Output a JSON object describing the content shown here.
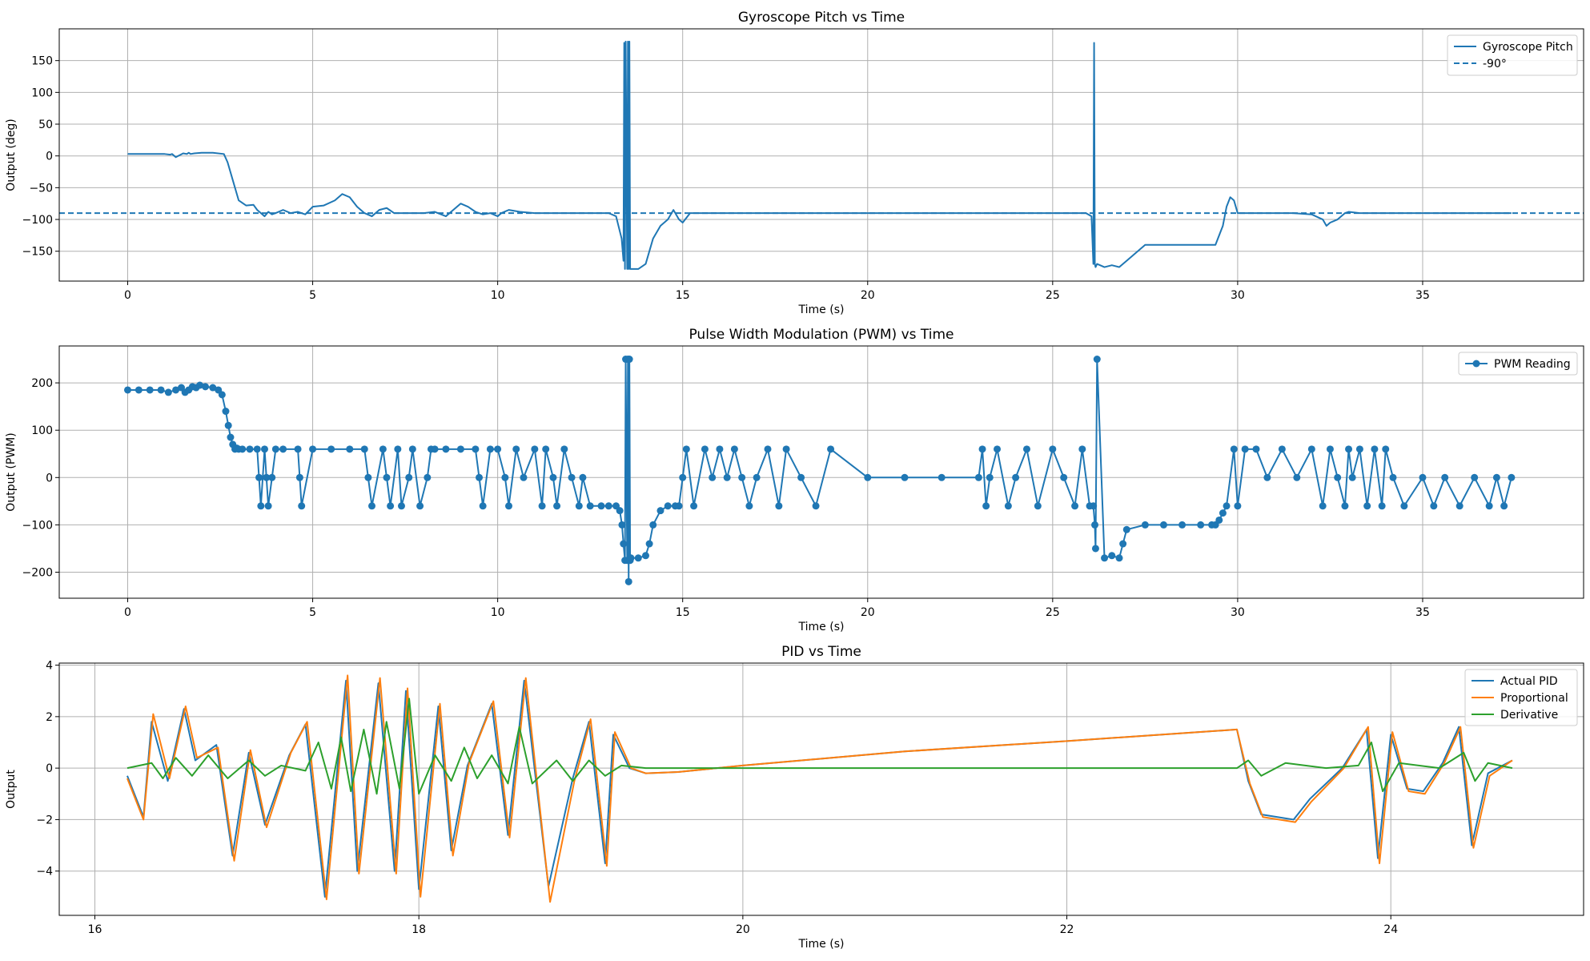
{
  "colors": {
    "blue": "#1f77b4",
    "orange": "#ff7f0e",
    "green": "#2ca02c",
    "grid": "#b0b0b0"
  },
  "chart_data": [
    {
      "type": "line",
      "title": "Gyroscope Pitch vs Time",
      "xlabel": "Time (s)",
      "ylabel": "Output (deg)",
      "xlim": [
        -1.85,
        39.35
      ],
      "ylim": [
        -197,
        200
      ],
      "xticks": [
        0,
        5,
        10,
        15,
        20,
        25,
        30,
        35
      ],
      "yticks": [
        -150,
        -100,
        -50,
        0,
        50,
        100,
        150
      ],
      "xtick_labels": [
        "0",
        "5",
        "10",
        "15",
        "20",
        "25",
        "30",
        "35"
      ],
      "ytick_labels": [
        "−150",
        "−100",
        "−50",
        "0",
        "50",
        "100",
        "150"
      ],
      "grid": true,
      "legend_position": "top-right",
      "hlines": [
        {
          "name": "-90°",
          "y": -90,
          "style": "dashed"
        }
      ],
      "series": [
        {
          "name": "Gyroscope Pitch",
          "style": "solid",
          "x": [
            0,
            0.5,
            1.0,
            1.15,
            1.2,
            1.3,
            1.5,
            1.6,
            1.65,
            1.7,
            1.8,
            2.0,
            2.3,
            2.6,
            2.7,
            2.85,
            3.0,
            3.2,
            3.4,
            3.5,
            3.6,
            3.7,
            3.8,
            3.9,
            4.0,
            4.2,
            4.4,
            4.6,
            4.8,
            5.0,
            5.3,
            5.6,
            5.8,
            6.0,
            6.2,
            6.4,
            6.6,
            6.8,
            7.0,
            7.2,
            7.5,
            8.0,
            8.3,
            8.6,
            8.8,
            9.0,
            9.2,
            9.4,
            9.6,
            9.8,
            10.0,
            10.1,
            10.3,
            10.6,
            11.0,
            11.5,
            12.0,
            12.5,
            13.0,
            13.2,
            13.35,
            13.4,
            13.42,
            13.44,
            13.46,
            13.5,
            13.52,
            13.54,
            13.56,
            13.58,
            13.8,
            14.0,
            14.1,
            14.2,
            14.4,
            14.6,
            14.75,
            14.9,
            15.0,
            15.2,
            15.5,
            16.0,
            17.0,
            18.0,
            20.0,
            22.0,
            24.0,
            25.5,
            25.9,
            26.05,
            26.1,
            26.12,
            26.14,
            26.16,
            26.2,
            26.4,
            26.6,
            26.8,
            27.0,
            27.5,
            28.0,
            28.5,
            29.0,
            29.4,
            29.6,
            29.7,
            29.8,
            29.9,
            30.0,
            30.2,
            30.5,
            31.0,
            31.5,
            32.0,
            32.3,
            32.4,
            32.5,
            32.7,
            32.9,
            33.0,
            33.3,
            33.6,
            34.0,
            35.0,
            36.0,
            37.0,
            37.4
          ],
          "y": [
            3,
            3,
            3,
            2,
            3,
            -2,
            4,
            3,
            5,
            3,
            4,
            5,
            5,
            3,
            -10,
            -40,
            -70,
            -78,
            -77,
            -85,
            -90,
            -95,
            -88,
            -92,
            -90,
            -85,
            -90,
            -88,
            -92,
            -80,
            -78,
            -70,
            -60,
            -65,
            -80,
            -90,
            -95,
            -85,
            -82,
            -90,
            -90,
            -90,
            -88,
            -95,
            -85,
            -75,
            -80,
            -88,
            -92,
            -90,
            -95,
            -90,
            -85,
            -88,
            -90,
            -90,
            -90,
            -90,
            -90,
            -95,
            -130,
            -165,
            178,
            -178,
            180,
            -178,
            180,
            -178,
            180,
            -178,
            -178,
            -170,
            -150,
            -130,
            -110,
            -100,
            -85,
            -100,
            -105,
            -90,
            -90,
            -90,
            -90,
            -90,
            -90,
            -90,
            -90,
            -90,
            -90,
            -95,
            -170,
            178,
            -170,
            -175,
            -170,
            -175,
            -172,
            -175,
            -165,
            -140,
            -140,
            -140,
            -140,
            -140,
            -110,
            -80,
            -65,
            -70,
            -90,
            -90,
            -90,
            -90,
            -90,
            -92,
            -100,
            -110,
            -105,
            -100,
            -90,
            -88,
            -90,
            -90,
            -90,
            -90,
            -90,
            -90,
            -90
          ]
        }
      ]
    },
    {
      "type": "line",
      "title": "Pulse Width Modulation (PWM) vs Time",
      "xlabel": "Time (s)",
      "ylabel": "Output (PWM)",
      "xlim": [
        -1.85,
        39.35
      ],
      "ylim": [
        -255,
        278
      ],
      "xticks": [
        0,
        5,
        10,
        15,
        20,
        25,
        30,
        35
      ],
      "yticks": [
        -200,
        -100,
        0,
        100,
        200
      ],
      "xtick_labels": [
        "0",
        "5",
        "10",
        "15",
        "20",
        "25",
        "30",
        "35"
      ],
      "ytick_labels": [
        "−200",
        "−100",
        "0",
        "100",
        "200"
      ],
      "grid": true,
      "legend_position": "top-right",
      "series": [
        {
          "name": "PWM Reading",
          "style": "solid",
          "marker": "circle",
          "x": [
            0,
            0.3,
            0.6,
            0.9,
            1.1,
            1.3,
            1.45,
            1.55,
            1.65,
            1.75,
            1.85,
            1.95,
            2.1,
            2.3,
            2.45,
            2.55,
            2.65,
            2.72,
            2.78,
            2.84,
            2.9,
            2.95,
            3.0,
            3.1,
            3.3,
            3.5,
            3.55,
            3.6,
            3.7,
            3.75,
            3.8,
            3.9,
            4.0,
            4.2,
            4.6,
            4.65,
            4.7,
            5.0,
            5.5,
            6.0,
            6.4,
            6.5,
            6.6,
            6.9,
            7.0,
            7.1,
            7.3,
            7.4,
            7.6,
            7.7,
            7.9,
            8.1,
            8.2,
            8.3,
            8.6,
            9.0,
            9.4,
            9.5,
            9.6,
            9.8,
            10.0,
            10.2,
            10.3,
            10.5,
            10.7,
            11.0,
            11.2,
            11.3,
            11.5,
            11.6,
            11.8,
            12.0,
            12.2,
            12.3,
            12.5,
            12.8,
            13.0,
            13.2,
            13.3,
            13.36,
            13.4,
            13.44,
            13.46,
            13.5,
            13.52,
            13.54,
            13.56,
            13.58,
            13.6,
            13.8,
            14.0,
            14.1,
            14.2,
            14.4,
            14.6,
            14.8,
            14.9,
            15.0,
            15.1,
            15.3,
            15.6,
            15.8,
            16.0,
            16.2,
            16.4,
            16.6,
            16.8,
            17.0,
            17.3,
            17.6,
            17.8,
            18.2,
            18.6,
            19.0,
            20.0,
            21.0,
            22.0,
            23.0,
            23.1,
            23.2,
            23.3,
            23.5,
            23.8,
            24.0,
            24.3,
            24.6,
            25.0,
            25.3,
            25.6,
            25.8,
            26.0,
            26.1,
            26.14,
            26.16,
            26.2,
            26.4,
            26.6,
            26.8,
            26.9,
            27.0,
            27.5,
            28.0,
            28.5,
            29.0,
            29.3,
            29.4,
            29.5,
            29.6,
            29.7,
            29.9,
            30.0,
            30.2,
            30.5,
            30.8,
            31.2,
            31.6,
            32.0,
            32.3,
            32.5,
            32.7,
            32.9,
            33.0,
            33.1,
            33.3,
            33.5,
            33.7,
            33.9,
            34.0,
            34.2,
            34.5,
            35.0,
            35.3,
            35.6,
            36.0,
            36.4,
            36.8,
            37.0,
            37.2,
            37.4
          ],
          "y": [
            185,
            185,
            185,
            185,
            180,
            185,
            190,
            180,
            185,
            192,
            190,
            195,
            192,
            190,
            185,
            175,
            140,
            110,
            85,
            70,
            60,
            62,
            60,
            60,
            60,
            60,
            0,
            -60,
            60,
            0,
            -60,
            0,
            60,
            60,
            60,
            0,
            -60,
            60,
            60,
            60,
            60,
            0,
            -60,
            60,
            0,
            -60,
            60,
            -60,
            0,
            60,
            -60,
            0,
            60,
            60,
            60,
            60,
            60,
            0,
            -60,
            60,
            60,
            0,
            -60,
            60,
            0,
            60,
            -60,
            60,
            0,
            -60,
            60,
            0,
            -60,
            0,
            -60,
            -60,
            -60,
            -60,
            -70,
            -100,
            -140,
            -175,
            250,
            -175,
            250,
            -220,
            250,
            -175,
            -170,
            -170,
            -165,
            -140,
            -100,
            -70,
            -60,
            -60,
            -60,
            0,
            60,
            -60,
            60,
            0,
            60,
            0,
            60,
            0,
            -60,
            0,
            60,
            -60,
            60,
            0,
            -60,
            60,
            0,
            0,
            0,
            0,
            60,
            -60,
            0,
            60,
            -60,
            0,
            60,
            -60,
            60,
            0,
            -60,
            60,
            -60,
            -60,
            -100,
            -150,
            250,
            -170,
            -165,
            -170,
            -140,
            -110,
            -100,
            -100,
            -100,
            -100,
            -100,
            -100,
            -90,
            -75,
            -60,
            60,
            -60,
            60,
            60,
            0,
            60,
            0,
            60,
            -60,
            60,
            0,
            -60,
            60,
            0,
            60,
            -60,
            60,
            -60,
            60,
            0,
            -60,
            0,
            -60,
            0,
            -60,
            0,
            -60,
            0,
            -60,
            0
          ]
        }
      ]
    },
    {
      "type": "line",
      "title": "PID vs Time",
      "xlabel": "Time (s)",
      "ylabel": "Output",
      "xlim": [
        15.78,
        25.19
      ],
      "ylim": [
        -5.72,
        4.08
      ],
      "xticks": [
        16,
        18,
        20,
        22,
        24
      ],
      "yticks": [
        -4,
        -2,
        0,
        2,
        4
      ],
      "xtick_labels": [
        "16",
        "18",
        "20",
        "22",
        "24"
      ],
      "ytick_labels": [
        "−4",
        "−2",
        "0",
        "2",
        "4"
      ],
      "grid": true,
      "legend_position": "top-right",
      "series": [
        {
          "name": "Actual PID",
          "style": "solid",
          "x": [
            16.2,
            16.3,
            16.35,
            16.45,
            16.55,
            16.62,
            16.75,
            16.85,
            16.95,
            17.05,
            17.2,
            17.3,
            17.42,
            17.55,
            17.62,
            17.75,
            17.85,
            17.92,
            18.0,
            18.12,
            18.2,
            18.3,
            18.45,
            18.55,
            18.65,
            18.8,
            18.95,
            19.05,
            19.15,
            19.2,
            19.3,
            19.4,
            19.6,
            20.0,
            21.0,
            22.0,
            23.05,
            23.12,
            23.2,
            23.3,
            23.4,
            23.5,
            23.7,
            23.85,
            23.92,
            24.0,
            24.1,
            24.2,
            24.32,
            24.42,
            24.5,
            24.6,
            24.75
          ],
          "y": [
            -0.3,
            -1.9,
            1.8,
            -0.5,
            2.3,
            0.3,
            0.9,
            -3.4,
            0.6,
            -2.2,
            0.5,
            1.7,
            -5.0,
            3.4,
            -4.0,
            3.3,
            -4.0,
            3.0,
            -4.7,
            2.4,
            -3.2,
            0.1,
            2.5,
            -2.6,
            3.4,
            -4.6,
            -0.4,
            1.8,
            -3.7,
            1.3,
            0.0,
            -0.2,
            -0.15,
            0.1,
            0.65,
            1.05,
            1.5,
            -0.5,
            -1.8,
            -1.9,
            -2.0,
            -1.2,
            0.0,
            1.5,
            -3.5,
            1.3,
            -0.8,
            -0.9,
            0.2,
            1.6,
            -3.0,
            -0.2,
            0.3
          ]
        },
        {
          "name": "Proportional",
          "style": "solid",
          "x": [
            16.2,
            16.3,
            16.36,
            16.46,
            16.56,
            16.63,
            16.76,
            16.86,
            16.96,
            17.06,
            17.21,
            17.31,
            17.43,
            17.56,
            17.63,
            17.76,
            17.86,
            17.93,
            18.01,
            18.13,
            18.21,
            18.31,
            18.46,
            18.56,
            18.66,
            18.81,
            18.96,
            19.06,
            19.16,
            19.21,
            19.31,
            19.4,
            19.6,
            20.0,
            21.0,
            22.0,
            23.05,
            23.13,
            23.21,
            23.31,
            23.41,
            23.51,
            23.71,
            23.86,
            23.93,
            24.01,
            24.11,
            24.21,
            24.33,
            24.43,
            24.51,
            24.61,
            24.75
          ],
          "y": [
            -0.4,
            -2.0,
            2.1,
            -0.4,
            2.4,
            0.4,
            0.8,
            -3.6,
            0.7,
            -2.3,
            0.6,
            1.8,
            -5.1,
            3.6,
            -4.1,
            3.5,
            -4.1,
            3.1,
            -5.0,
            2.5,
            -3.4,
            0.2,
            2.6,
            -2.7,
            3.5,
            -5.2,
            -0.5,
            1.9,
            -3.8,
            1.4,
            0.0,
            -0.2,
            -0.15,
            0.1,
            0.65,
            1.05,
            1.5,
            -0.6,
            -1.9,
            -2.0,
            -2.1,
            -1.3,
            0.0,
            1.6,
            -3.7,
            1.4,
            -0.9,
            -1.0,
            0.2,
            1.6,
            -3.1,
            -0.3,
            0.3
          ]
        },
        {
          "name": "Derivative",
          "style": "solid",
          "x": [
            16.2,
            16.35,
            16.42,
            16.5,
            16.6,
            16.7,
            16.82,
            16.95,
            17.05,
            17.15,
            17.3,
            17.38,
            17.46,
            17.52,
            17.58,
            17.66,
            17.74,
            17.8,
            17.88,
            17.94,
            18.0,
            18.1,
            18.2,
            18.28,
            18.36,
            18.45,
            18.55,
            18.62,
            18.7,
            18.85,
            18.95,
            19.05,
            19.15,
            19.25,
            19.4,
            20.0,
            22.0,
            23.05,
            23.12,
            23.2,
            23.35,
            23.6,
            23.8,
            23.88,
            23.95,
            24.05,
            24.3,
            24.45,
            24.52,
            24.6,
            24.75
          ],
          "y": [
            0.0,
            0.2,
            -0.4,
            0.4,
            -0.3,
            0.5,
            -0.4,
            0.3,
            -0.3,
            0.1,
            -0.1,
            1.0,
            -0.8,
            1.2,
            -0.9,
            1.5,
            -1.0,
            1.8,
            -0.8,
            2.7,
            -1.0,
            0.5,
            -0.5,
            0.8,
            -0.4,
            0.5,
            -0.6,
            1.6,
            -0.6,
            0.3,
            -0.5,
            0.3,
            -0.3,
            0.1,
            0.0,
            0.0,
            0.0,
            0.0,
            0.3,
            -0.3,
            0.2,
            0.0,
            0.1,
            1.0,
            -0.9,
            0.2,
            0.0,
            0.6,
            -0.5,
            0.2,
            0.0
          ]
        }
      ]
    }
  ]
}
